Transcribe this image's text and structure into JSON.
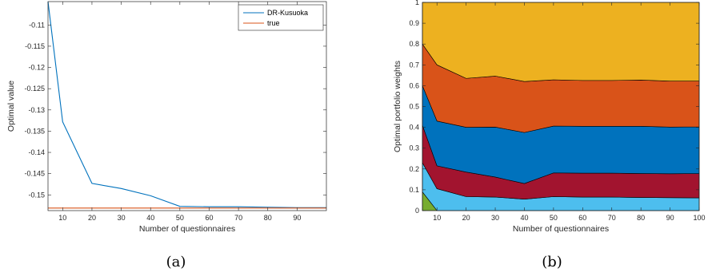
{
  "chart_data": [
    {
      "type": "line",
      "caption": "(a)",
      "xlabel": "Number of questionnaires",
      "ylabel": "Optimal value",
      "xlim": [
        5,
        100
      ],
      "ylim": [
        -0.1537,
        -0.1045
      ],
      "xticks": [
        10,
        20,
        30,
        40,
        50,
        60,
        70,
        80,
        90
      ],
      "yticks": [
        -0.11,
        -0.115,
        -0.12,
        -0.125,
        -0.13,
        -0.135,
        -0.14,
        -0.145,
        -0.15
      ],
      "ytick_labels": [
        "-0.11",
        "-0.115",
        "-0.12",
        "-0.125",
        "-0.13",
        "-0.135",
        "-0.14",
        "-0.145",
        "-0.15"
      ],
      "grid": false,
      "legend_position": "top-right",
      "series": [
        {
          "name": "DR-Kusuoka",
          "color": "#0072BD",
          "x": [
            5,
            10,
            20,
            30,
            40,
            50,
            60,
            70,
            80,
            90,
            100
          ],
          "y": [
            -0.1045,
            -0.1328,
            -0.1473,
            -0.1485,
            -0.1502,
            -0.1527,
            -0.1528,
            -0.1528,
            -0.1529,
            -0.153,
            -0.153
          ]
        },
        {
          "name": "true",
          "color": "#D95319",
          "x": [
            5,
            100
          ],
          "y": [
            -0.1531,
            -0.1531
          ]
        }
      ]
    },
    {
      "type": "area",
      "stacked": true,
      "caption": "(b)",
      "xlabel": "Number of questionnaires",
      "ylabel": "Optimal portfolio weights",
      "xlim": [
        5,
        100
      ],
      "ylim": [
        0,
        1
      ],
      "xticks": [
        10,
        20,
        30,
        40,
        50,
        60,
        70,
        80,
        90,
        100
      ],
      "yticks": [
        0,
        0.1,
        0.2,
        0.3,
        0.4,
        0.5,
        0.6,
        0.7,
        0.8,
        0.9,
        1
      ],
      "ytick_labels": [
        "0",
        "0.1",
        "0.2",
        "0.3",
        "0.4",
        "0.5",
        "0.6",
        "0.7",
        "0.8",
        "0.9",
        "1"
      ],
      "grid": false,
      "x": [
        5,
        10,
        20,
        30,
        40,
        50,
        60,
        70,
        80,
        90,
        100
      ],
      "series": [
        {
          "color": "#77AC30",
          "values": [
            0.09,
            0,
            0,
            0,
            0,
            0,
            0,
            0,
            0,
            0,
            0
          ]
        },
        {
          "color": "#4DBEEE",
          "values": [
            0.14,
            0.105,
            0.067,
            0.065,
            0.055,
            0.067,
            0.065,
            0.065,
            0.063,
            0.062,
            0.061
          ]
        },
        {
          "color": "#A2142F",
          "values": [
            0.18,
            0.11,
            0.118,
            0.096,
            0.075,
            0.114,
            0.115,
            0.115,
            0.115,
            0.115,
            0.117
          ]
        },
        {
          "color": "#0072BD",
          "values": [
            0.19,
            0.215,
            0.215,
            0.24,
            0.245,
            0.225,
            0.225,
            0.225,
            0.227,
            0.224,
            0.224
          ]
        },
        {
          "color": "#D95319",
          "values": [
            0.2,
            0.27,
            0.235,
            0.245,
            0.245,
            0.222,
            0.22,
            0.22,
            0.222,
            0.221,
            0.22
          ]
        },
        {
          "color": "#EDB120",
          "values": [
            0.2,
            0.3,
            0.365,
            0.354,
            0.38,
            0.372,
            0.375,
            0.375,
            0.373,
            0.378,
            0.378
          ]
        }
      ]
    }
  ]
}
